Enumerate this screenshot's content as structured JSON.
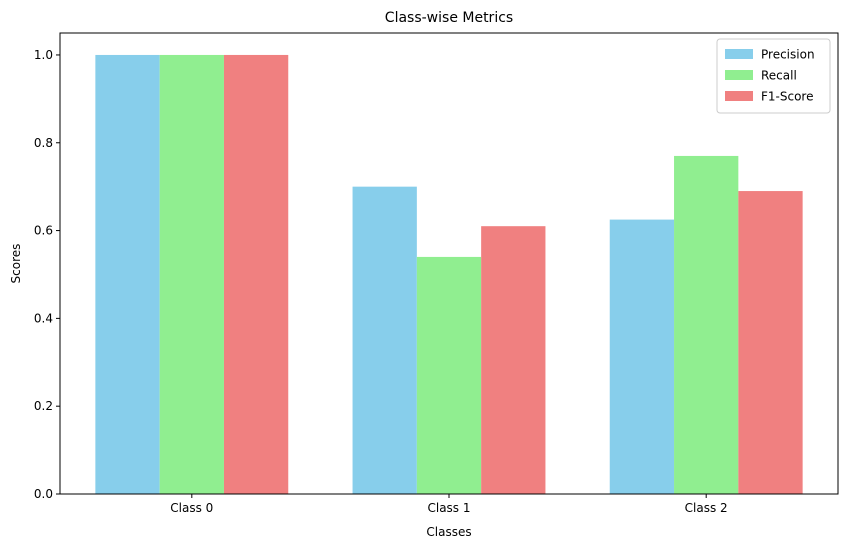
{
  "chart_data": {
    "type": "bar",
    "title": "Class-wise Metrics",
    "xlabel": "Classes",
    "ylabel": "Scores",
    "categories": [
      "Class 0",
      "Class 1",
      "Class 2"
    ],
    "ylim": [
      0,
      1.05
    ],
    "yticks": [
      0.0,
      0.2,
      0.4,
      0.6,
      0.8,
      1.0
    ],
    "ytick_labels": [
      "0.0",
      "0.2",
      "0.4",
      "0.6",
      "0.8",
      "1.0"
    ],
    "grid": false,
    "legend_position": "top-right",
    "series": [
      {
        "name": "Precision",
        "color": "#87CEEB",
        "values": [
          1.0,
          0.7,
          0.625
        ]
      },
      {
        "name": "Recall",
        "color": "#90EE90",
        "values": [
          1.0,
          0.54,
          0.77
        ]
      },
      {
        "name": "F1-Score",
        "color": "#F08080",
        "values": [
          1.0,
          0.61,
          0.69
        ]
      }
    ]
  }
}
